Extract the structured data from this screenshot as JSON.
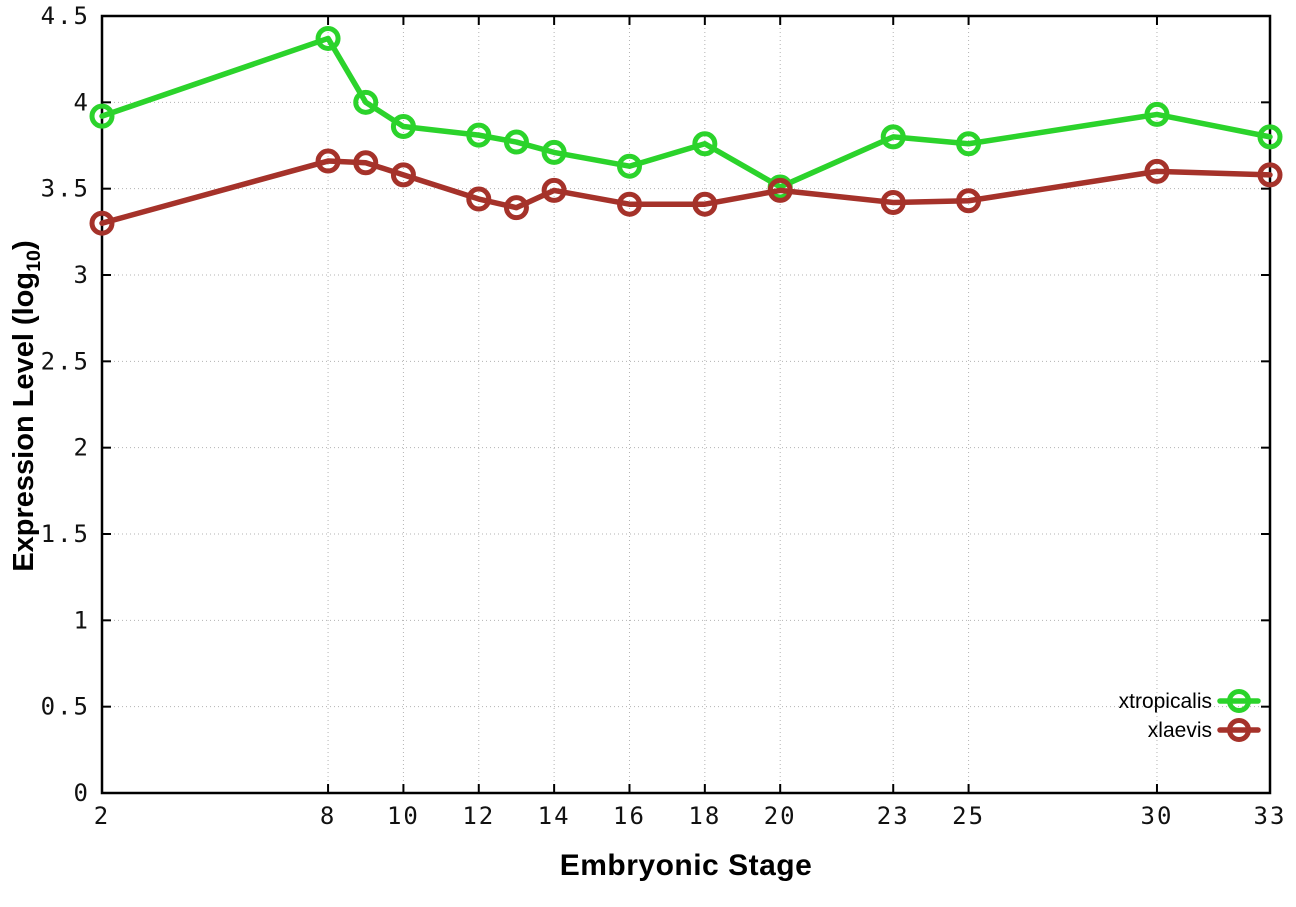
{
  "chart_data": {
    "type": "line",
    "title": "",
    "xlabel": "Embryonic Stage",
    "ylabel": "Expression Level (log10)",
    "ylabel_parts": {
      "main": "Expression Level (log",
      "sub": "10",
      "close": ")"
    },
    "xlim": [
      2,
      33
    ],
    "ylim": [
      0,
      4.5
    ],
    "x_ticks": [
      2,
      8,
      10,
      12,
      14,
      16,
      18,
      20,
      23,
      25,
      30,
      33
    ],
    "y_ticks": [
      0,
      0.5,
      1,
      1.5,
      2,
      2.5,
      3,
      3.5,
      4,
      4.5
    ],
    "grid": true,
    "grid_style": "dotted",
    "legend_position": "bottom-right",
    "x": [
      2,
      8,
      9,
      10,
      12,
      13,
      14,
      16,
      18,
      20,
      23,
      25,
      30,
      33
    ],
    "series": [
      {
        "name": "xtropicalis",
        "color": "#2bd32b",
        "marker": "open-circle",
        "values": [
          3.92,
          4.37,
          4.0,
          3.86,
          3.81,
          3.77,
          3.71,
          3.63,
          3.76,
          3.51,
          3.8,
          3.76,
          3.93,
          3.8
        ]
      },
      {
        "name": "xlaevis",
        "color": "#a5322a",
        "marker": "open-circle",
        "values": [
          3.3,
          3.66,
          3.65,
          3.58,
          3.44,
          3.39,
          3.49,
          3.41,
          3.41,
          3.49,
          3.42,
          3.43,
          3.6,
          3.58
        ]
      }
    ],
    "colors": {
      "border": "#000000",
      "grid": "#b3b3b3",
      "tick_text": "#111111"
    }
  }
}
